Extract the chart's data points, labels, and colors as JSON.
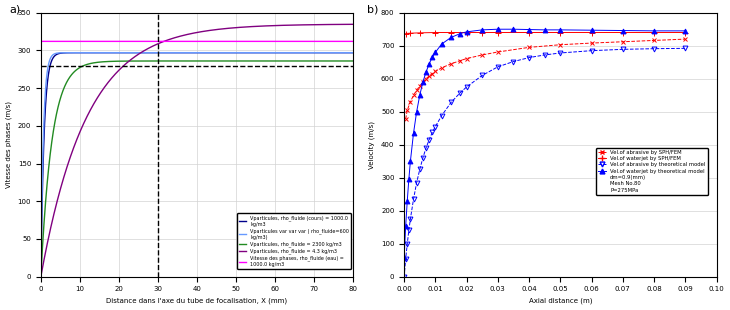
{
  "subplot_a": {
    "xlabel": "Distance dans l'axe du tube de focalisation, X (mm)",
    "ylabel": "Vitesse des phases (m/s)",
    "xlim": [
      0,
      80
    ],
    "ylim": [
      0,
      350
    ],
    "dashed_x": 30,
    "dashed_y": 280,
    "yticks": [
      0,
      50,
      100,
      150,
      200,
      250,
      300,
      350
    ],
    "xticks": [
      0,
      10,
      20,
      30,
      40,
      50,
      60,
      70,
      80
    ],
    "curves": [
      {
        "label": "Vparticules, rho_fluide (cours) = 1000.0\nkg/m3",
        "color": "#00008B",
        "v_final": 297,
        "k": 1.2
      },
      {
        "label": "Vparticules var var var ( rho_fluide=600\nkg/m3)",
        "color": "#6699FF",
        "v_final": 297,
        "k": 1.5
      },
      {
        "label": "Vparticules, rho_fluide = 2300 kg/m3",
        "color": "#228B22",
        "v_final": 286,
        "k": 0.35
      },
      {
        "label": "Vparticules, rho_fluide = 4.3 kg/m3",
        "color": "#800080",
        "v_final": 335,
        "k": 0.085
      },
      {
        "label": "Vitesse des phases, rho_fluide (eau) =\n1000.0 kg/m3",
        "color": "#FF00FF",
        "v_final": 312,
        "k": 0
      }
    ]
  },
  "subplot_b": {
    "xlabel": "Axial distance (m)",
    "ylabel": "Velocity (m/s)",
    "xlim": [
      0,
      0.1
    ],
    "ylim": [
      0,
      800
    ],
    "xticks": [
      0,
      0.01,
      0.02,
      0.03,
      0.04,
      0.05,
      0.06,
      0.07,
      0.08,
      0.09,
      0.1
    ],
    "yticks": [
      0,
      100,
      200,
      300,
      400,
      500,
      600,
      700,
      800
    ],
    "sph_abrasive_x": [
      0.0005,
      0.001,
      0.002,
      0.003,
      0.004,
      0.005,
      0.006,
      0.007,
      0.008,
      0.009,
      0.01,
      0.012,
      0.015,
      0.018,
      0.02,
      0.025,
      0.03,
      0.04,
      0.05,
      0.06,
      0.07,
      0.08,
      0.09
    ],
    "sph_abrasive_y": [
      478,
      505,
      530,
      550,
      565,
      578,
      590,
      600,
      608,
      615,
      622,
      633,
      645,
      655,
      661,
      672,
      681,
      695,
      703,
      708,
      712,
      716,
      720
    ],
    "sph_waterjet_x": [
      0.0005,
      0.002,
      0.005,
      0.01,
      0.015,
      0.02,
      0.025,
      0.03,
      0.04,
      0.05,
      0.06,
      0.07,
      0.08,
      0.09
    ],
    "sph_waterjet_y": [
      737,
      738,
      739,
      740,
      740,
      740,
      740,
      740,
      740,
      740,
      740,
      740,
      740,
      740
    ],
    "theo_abrasive_x": [
      0.0,
      0.0005,
      0.001,
      0.0015,
      0.002,
      0.003,
      0.004,
      0.005,
      0.006,
      0.007,
      0.008,
      0.009,
      0.01,
      0.012,
      0.015,
      0.018,
      0.02,
      0.025,
      0.03,
      0.035,
      0.04,
      0.045,
      0.05,
      0.06,
      0.07,
      0.08,
      0.09
    ],
    "theo_abrasive_y": [
      0,
      55,
      100,
      140,
      175,
      235,
      285,
      325,
      360,
      390,
      415,
      437,
      455,
      488,
      528,
      558,
      575,
      610,
      636,
      652,
      664,
      672,
      678,
      685,
      689,
      691,
      692
    ],
    "theo_waterjet_x": [
      0.0,
      0.0005,
      0.001,
      0.0015,
      0.002,
      0.003,
      0.004,
      0.005,
      0.006,
      0.007,
      0.008,
      0.009,
      0.01,
      0.012,
      0.015,
      0.018,
      0.02,
      0.025,
      0.03,
      0.035,
      0.04,
      0.045,
      0.05,
      0.06,
      0.07,
      0.08,
      0.09
    ],
    "theo_waterjet_y": [
      60,
      155,
      230,
      295,
      350,
      435,
      500,
      550,
      590,
      620,
      645,
      665,
      680,
      705,
      725,
      737,
      742,
      748,
      750,
      750,
      749,
      748,
      748,
      747,
      746,
      745,
      745
    ],
    "legend_labels": [
      "Vel.of abrasive by SPH/FEM",
      "Vel.of waterjet by SPH/FEM",
      "Vel.of abrasive by theoretical model",
      "Vel.of waterjet by theoretical model",
      "dm=0.9(mm)",
      "Mesh No.80",
      "P=275MPa"
    ]
  }
}
